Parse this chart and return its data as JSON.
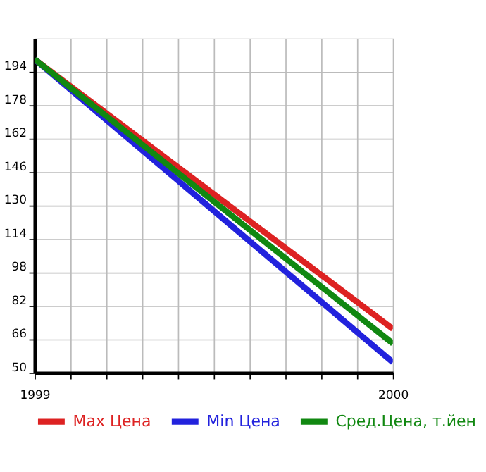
{
  "chart_data": {
    "type": "line",
    "x": [
      1999,
      2000
    ],
    "series": [
      {
        "name": "Max Цена",
        "color": "#dd2222",
        "values": [
          200,
          71
        ]
      },
      {
        "name": "Min Цена",
        "color": "#2222dd",
        "values": [
          200,
          55
        ]
      },
      {
        "name": "Сред.Цена, т.йен",
        "color": "#118811",
        "values": [
          200,
          64
        ]
      }
    ],
    "xlim": [
      1999,
      2000
    ],
    "xticks": [
      1999,
      {
        "value": 1999.1,
        "label": null
      },
      {
        "value": 1999.2,
        "label": null
      },
      {
        "value": 1999.3,
        "label": null
      },
      {
        "value": 1999.4,
        "label": null
      },
      {
        "value": 1999.5,
        "label": null
      },
      {
        "value": 1999.6,
        "label": null
      },
      {
        "value": 1999.7,
        "label": null
      },
      {
        "value": 1999.8,
        "label": null
      },
      {
        "value": 1999.9,
        "label": null
      },
      2000
    ],
    "ylim": [
      50,
      210
    ],
    "yticks": [
      50,
      66,
      82,
      98,
      114,
      130,
      146,
      162,
      178,
      194
    ],
    "grid": true,
    "legend": "bottom",
    "marker": "none",
    "line_style": "solid"
  }
}
